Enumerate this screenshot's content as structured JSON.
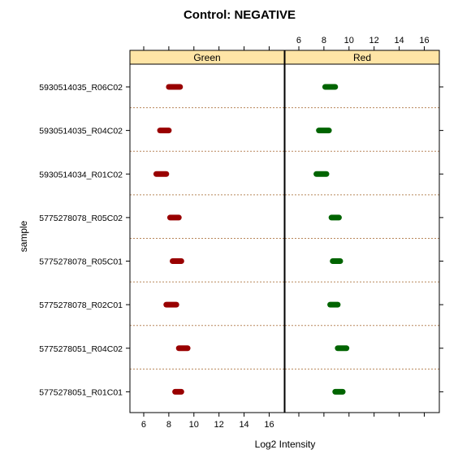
{
  "chart_data": {
    "type": "scatter",
    "title": "Control: NEGATIVE",
    "xlabel": "Log2 Intensity",
    "ylabel": "sample",
    "xlim": [
      4.9,
      17.2
    ],
    "x_ticks": [
      6,
      8,
      10,
      12,
      14,
      16
    ],
    "panels": [
      {
        "name": "Green",
        "strip_color": "#ffe5a6",
        "mark_color": "#990000"
      },
      {
        "name": "Red",
        "strip_color": "#ffe5a6",
        "mark_color": "#006400"
      }
    ],
    "categories": [
      "5930514035_R06C02",
      "5930514035_R04C02",
      "5930514034_R01C02",
      "5775278078_R05C02",
      "5775278078_R05C01",
      "5775278078_R02C01",
      "5775278051_R04C02",
      "5775278051_R01C01"
    ],
    "series": [
      {
        "panel": "Green",
        "ranges": [
          [
            8.0,
            8.9
          ],
          [
            7.3,
            8.0
          ],
          [
            7.0,
            7.8
          ],
          [
            8.1,
            8.8
          ],
          [
            8.3,
            9.0
          ],
          [
            7.8,
            8.6
          ],
          [
            8.8,
            9.5
          ],
          [
            8.5,
            9.0
          ]
        ]
      },
      {
        "panel": "Red",
        "ranges": [
          [
            8.1,
            8.9
          ],
          [
            7.6,
            8.4
          ],
          [
            7.4,
            8.2
          ],
          [
            8.6,
            9.2
          ],
          [
            8.7,
            9.3
          ],
          [
            8.5,
            9.1
          ],
          [
            9.1,
            9.8
          ],
          [
            8.9,
            9.5
          ]
        ]
      }
    ],
    "grid": false,
    "legend": "none"
  }
}
